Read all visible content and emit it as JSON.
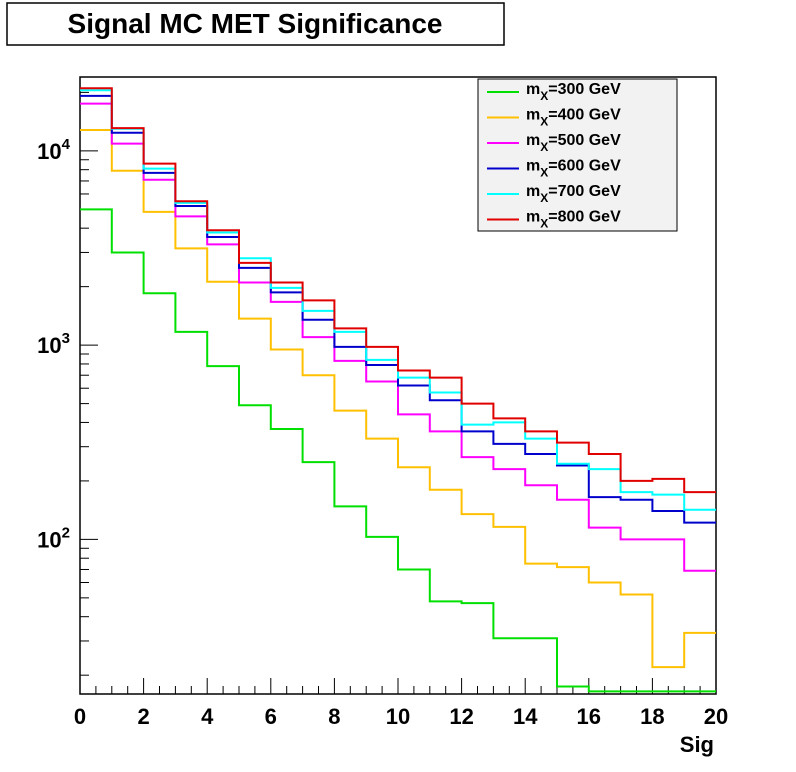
{
  "chart_data": {
    "type": "line",
    "style": "step-histogram",
    "title": "Signal MC MET Significance",
    "xlabel": "Sig",
    "ylabel": "",
    "xlim": [
      0,
      20
    ],
    "ylim": [
      16,
      24000
    ],
    "yscale": "log",
    "grid": false,
    "legend_position": "top-right",
    "bin_edges": [
      0,
      1,
      2,
      3,
      4,
      5,
      6,
      7,
      8,
      9,
      10,
      11,
      12,
      13,
      14,
      15,
      16,
      17,
      18,
      19,
      20
    ],
    "x_ticks": [
      0,
      2,
      4,
      6,
      8,
      10,
      12,
      14,
      16,
      18,
      20
    ],
    "x_tick_labels": [
      "0",
      "2",
      "4",
      "6",
      "8",
      "10",
      "12",
      "14",
      "16",
      "18",
      "20"
    ],
    "y_ticks": [
      {
        "value": 100,
        "base": "10",
        "exp": "2"
      },
      {
        "value": 1000,
        "base": "10",
        "exp": "3"
      },
      {
        "value": 10000,
        "base": "10",
        "exp": "4"
      }
    ],
    "series": [
      {
        "name": "=300 GeV",
        "legend_prefix": "m",
        "legend_sub": "X",
        "color": "#00e000",
        "values": [
          5000,
          3000,
          1850,
          1170,
          780,
          490,
          370,
          250,
          148,
          103,
          70,
          48,
          47,
          31,
          31,
          17.5,
          16.5,
          16.5,
          16.5,
          16.5
        ]
      },
      {
        "name": "=400 GeV",
        "legend_prefix": "m",
        "legend_sub": "X",
        "color": "#ffc000",
        "values": [
          12800,
          7900,
          4850,
          3150,
          2120,
          1370,
          950,
          700,
          460,
          330,
          235,
          180,
          135,
          116,
          75,
          72,
          60,
          52,
          22,
          33
        ]
      },
      {
        "name": "=500 GeV",
        "legend_prefix": "m",
        "legend_sub": "X",
        "color": "#ff00ff",
        "values": [
          17500,
          10900,
          7100,
          4600,
          3300,
          2100,
          1670,
          1100,
          830,
          650,
          440,
          360,
          265,
          230,
          190,
          160,
          115,
          100,
          100,
          69
        ]
      },
      {
        "name": "=600 GeV",
        "legend_prefix": "m",
        "legend_sub": "X",
        "color": "#0000cc",
        "values": [
          19200,
          12400,
          7700,
          5200,
          3600,
          2500,
          1870,
          1350,
          980,
          790,
          620,
          520,
          360,
          310,
          275,
          240,
          165,
          160,
          140,
          122
        ]
      },
      {
        "name": "=700 GeV",
        "legend_prefix": "m",
        "legend_sub": "X",
        "color": "#00ffff",
        "values": [
          20500,
          13000,
          8100,
          5400,
          3800,
          2800,
          1970,
          1500,
          1170,
          840,
          680,
          570,
          390,
          400,
          330,
          245,
          230,
          175,
          170,
          142
        ]
      },
      {
        "name": "=800 GeV",
        "legend_prefix": "m",
        "legend_sub": "X",
        "color": "#e00000",
        "values": [
          21000,
          13100,
          8600,
          5500,
          3900,
          2650,
          2100,
          1700,
          1220,
          980,
          740,
          680,
          500,
          420,
          360,
          315,
          275,
          200,
          205,
          175
        ]
      }
    ]
  }
}
